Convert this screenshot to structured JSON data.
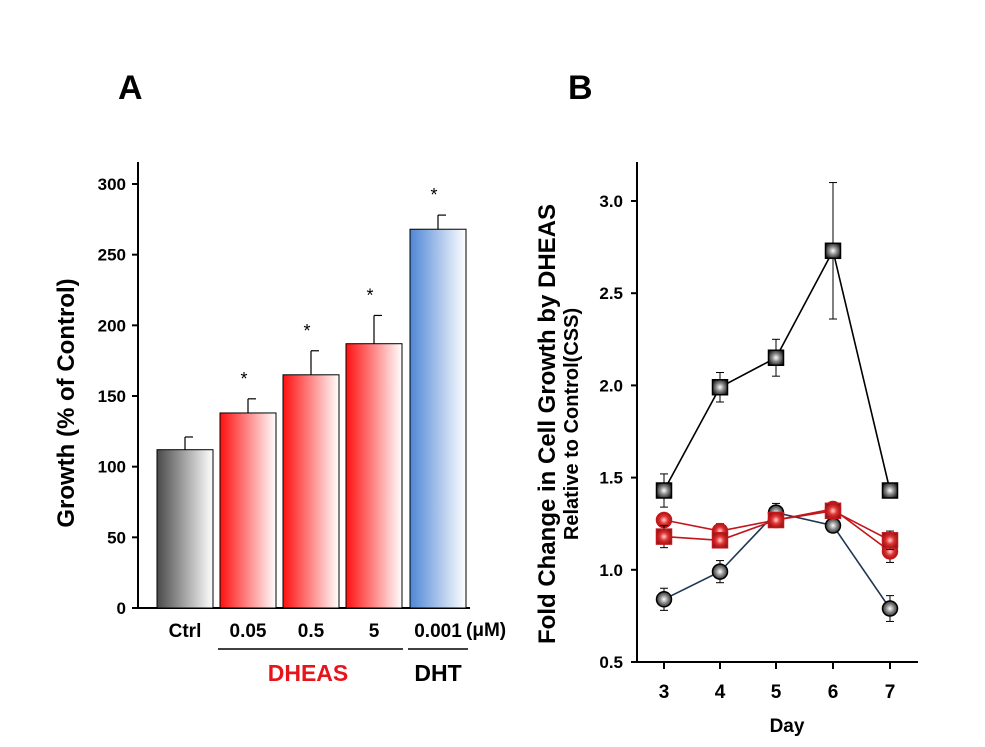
{
  "chart_data": [
    {
      "panel": "A",
      "type": "bar",
      "ylabel": "Growth (% of Control)",
      "ylim": [
        0,
        300
      ],
      "yticks": [
        "0",
        "50",
        "100",
        "150",
        "200",
        "250",
        "300"
      ],
      "categories": [
        "Ctrl",
        "0.05",
        "0.5",
        "5",
        "0.001"
      ],
      "unit_label": "(μM)",
      "values": [
        112,
        138,
        165,
        187,
        268
      ],
      "errors": [
        9,
        10,
        17,
        20,
        10
      ],
      "significance": [
        "",
        "*",
        "*",
        "*",
        "*"
      ],
      "groups": [
        {
          "label": "DHEAS",
          "color": "#e8141c"
        },
        {
          "label": "DHT",
          "color": "#000000"
        }
      ],
      "bar_colors": [
        "#555555",
        "#ff1a1a",
        "#ff1a1a",
        "#ff1a1a",
        "#5b8fd8"
      ]
    },
    {
      "panel": "B",
      "type": "line",
      "ylabel_line1": "Fold Change in Cell Growth by DHEAS",
      "ylabel_line2": "Relative to Control(CSS)",
      "xlabel": "Day",
      "x": [
        3,
        4,
        5,
        6,
        7
      ],
      "ylim": [
        0.5,
        3.2
      ],
      "yticks": [
        "0.5",
        "1.0",
        "1.5",
        "2.0",
        "2.5",
        "3.0"
      ],
      "series": [
        {
          "marker": "square",
          "color": "#000000",
          "fill": "#777777",
          "values": [
            1.43,
            1.99,
            2.15,
            2.73,
            1.43
          ],
          "errors": [
            0.09,
            0.08,
            0.1,
            0.37,
            0.0
          ]
        },
        {
          "marker": "circle",
          "color": "#000000",
          "fill": "#444444",
          "values": [
            0.84,
            0.99,
            1.31,
            1.24,
            0.79
          ],
          "errors": [
            0.06,
            0.06,
            0.05,
            0.0,
            0.07
          ]
        },
        {
          "marker": "circle",
          "color": "#c0161c",
          "fill": "#e03030",
          "values": [
            1.27,
            1.21,
            1.27,
            1.33,
            1.1
          ],
          "errors": [
            0.0,
            0.04,
            0.03,
            0.03,
            0.06
          ]
        },
        {
          "marker": "square",
          "color": "#c0161c",
          "fill": "#e03030",
          "values": [
            1.18,
            1.16,
            1.27,
            1.32,
            1.16
          ],
          "errors": [
            0.06,
            0.04,
            0.0,
            0.03,
            0.05
          ]
        }
      ]
    }
  ],
  "panels": {
    "a_label": "A",
    "b_label": "B"
  }
}
